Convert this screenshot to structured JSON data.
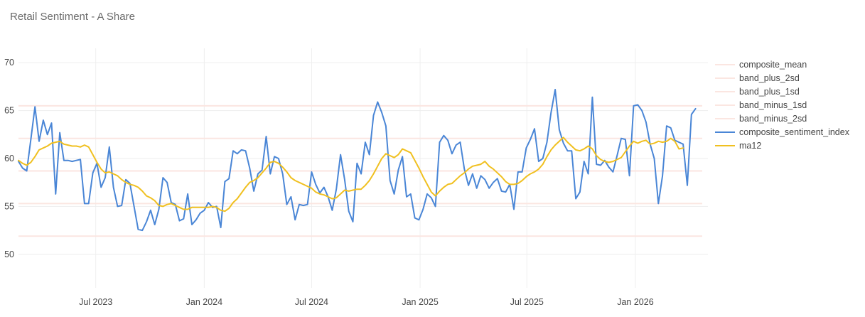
{
  "chart_data": {
    "type": "line",
    "title": "Retail Sentiment - A Share",
    "xlabel": "",
    "ylabel": "",
    "x_range": [
      "2023-02-20",
      "2026-05-04"
    ],
    "ylim": [
      46.5,
      71.5
    ],
    "y_ticks": [
      50,
      55,
      60,
      65,
      70
    ],
    "x_ticks": [
      {
        "date": "2023-07-01",
        "label": "Jul 2023"
      },
      {
        "date": "2024-01-01",
        "label": "Jan 2024"
      },
      {
        "date": "2024-07-01",
        "label": "Jul 2024"
      },
      {
        "date": "2025-01-01",
        "label": "Jan 2025"
      },
      {
        "date": "2025-07-01",
        "label": "Jul 2025"
      },
      {
        "date": "2026-01-01",
        "label": "Jan 2026"
      }
    ],
    "grid": true,
    "legend_position": "right",
    "colors": {
      "bands": "#fbe6e1",
      "composite": "#4a86d6",
      "ma12": "#f0c020",
      "grid": "#eeeeee"
    },
    "reference_lines": [
      {
        "name": "composite_mean",
        "value": 58.7
      },
      {
        "name": "band_plus_2sd",
        "value": 65.5
      },
      {
        "name": "band_plus_1sd",
        "value": 62.1
      },
      {
        "name": "band_minus_1sd",
        "value": 55.3
      },
      {
        "name": "band_minus_2sd",
        "value": 51.9
      }
    ],
    "x_start": "2023-02-20",
    "x_step_days": 7,
    "series": [
      {
        "name": "composite_sentiment_index",
        "values": [
          59.7,
          59.0,
          58.7,
          62.0,
          65.4,
          61.8,
          64.0,
          62.5,
          63.7,
          56.3,
          62.7,
          59.8,
          59.8,
          59.7,
          59.8,
          59.9,
          55.3,
          55.3,
          58.5,
          59.5,
          57.0,
          58.0,
          61.2,
          57.0,
          55.0,
          55.1,
          57.8,
          57.4,
          55.0,
          52.6,
          52.5,
          53.4,
          54.6,
          53.1,
          54.7,
          58.0,
          57.5,
          55.4,
          55.2,
          53.5,
          53.7,
          56.3,
          53.1,
          53.6,
          54.3,
          54.6,
          55.4,
          54.9,
          55.0,
          52.8,
          57.6,
          57.9,
          60.8,
          60.5,
          60.9,
          60.8,
          59.0,
          56.6,
          58.4,
          58.8,
          62.3,
          58.4,
          60.2,
          60.0,
          58.4,
          55.2,
          56.0,
          53.6,
          55.2,
          55.1,
          55.2,
          58.6,
          57.3,
          56.4,
          57.0,
          56.0,
          54.6,
          56.8,
          60.4,
          57.8,
          54.5,
          53.4,
          59.5,
          58.4,
          61.7,
          60.4,
          64.5,
          65.9,
          64.8,
          63.4,
          57.7,
          56.3,
          58.8,
          60.2,
          56.0,
          56.3,
          53.8,
          53.6,
          54.7,
          56.3,
          55.9,
          55.0,
          61.7,
          62.4,
          61.9,
          60.5,
          61.4,
          61.7,
          58.9,
          57.2,
          58.4,
          56.9,
          58.2,
          57.8,
          56.9,
          57.5,
          57.9,
          56.6,
          56.5,
          57.3,
          54.7,
          58.6,
          58.6,
          61.1,
          62.0,
          63.1,
          59.7,
          60.0,
          61.7,
          64.8,
          67.2,
          63.0,
          61.6,
          60.8,
          60.8,
          55.8,
          56.5,
          59.7,
          58.4,
          66.4,
          59.4,
          59.3,
          59.8,
          59.1,
          58.6,
          60.3,
          62.1,
          62.0,
          58.2,
          65.5,
          65.6,
          65.0,
          63.8,
          61.5,
          60.0,
          55.3,
          58.2,
          63.4,
          63.2,
          61.9,
          61.7,
          61.5,
          57.2,
          64.6,
          65.2
        ]
      },
      {
        "name": "ma12",
        "values": [
          59.8,
          59.5,
          59.3,
          59.6,
          60.2,
          60.9,
          61.1,
          61.3,
          61.6,
          61.7,
          61.8,
          61.5,
          61.4,
          61.3,
          61.3,
          61.2,
          61.4,
          61.2,
          60.4,
          59.6,
          58.9,
          58.5,
          58.6,
          58.4,
          58.2,
          57.8,
          57.5,
          57.3,
          57.2,
          57.0,
          56.6,
          56.1,
          55.9,
          55.6,
          55.1,
          55.0,
          55.2,
          55.3,
          55.1,
          54.9,
          54.7,
          54.7,
          54.9,
          54.9,
          54.9,
          54.9,
          54.9,
          55.0,
          54.9,
          54.6,
          54.5,
          54.8,
          55.4,
          55.8,
          56.4,
          57.0,
          57.5,
          57.7,
          58.0,
          58.5,
          59.0,
          59.6,
          59.7,
          59.5,
          59.1,
          58.6,
          58.0,
          57.7,
          57.5,
          57.3,
          57.1,
          56.9,
          56.5,
          56.3,
          56.2,
          56.0,
          55.8,
          55.9,
          56.3,
          56.7,
          56.6,
          56.7,
          56.8,
          56.8,
          57.2,
          57.7,
          58.4,
          59.2,
          60.0,
          60.5,
          60.3,
          60.1,
          60.4,
          61.0,
          60.8,
          60.6,
          59.8,
          59.0,
          58.1,
          57.3,
          56.5,
          56.1,
          56.6,
          57.0,
          57.3,
          57.4,
          57.8,
          58.2,
          58.5,
          58.9,
          59.2,
          59.3,
          59.4,
          59.7,
          59.2,
          58.9,
          58.5,
          58.1,
          57.6,
          57.3,
          57.3,
          57.4,
          57.7,
          58.1,
          58.4,
          58.6,
          58.9,
          59.4,
          60.2,
          60.9,
          61.4,
          61.8,
          62.2,
          61.7,
          61.3,
          60.9,
          60.8,
          61.0,
          61.3,
          61.0,
          60.3,
          59.9,
          59.7,
          59.6,
          59.7,
          59.9,
          60.1,
          60.7,
          61.3,
          61.8,
          61.6,
          61.8,
          61.9,
          61.5,
          61.6,
          61.8,
          61.7,
          61.8,
          62.1,
          61.8,
          61.0,
          61.1
        ]
      }
    ]
  }
}
